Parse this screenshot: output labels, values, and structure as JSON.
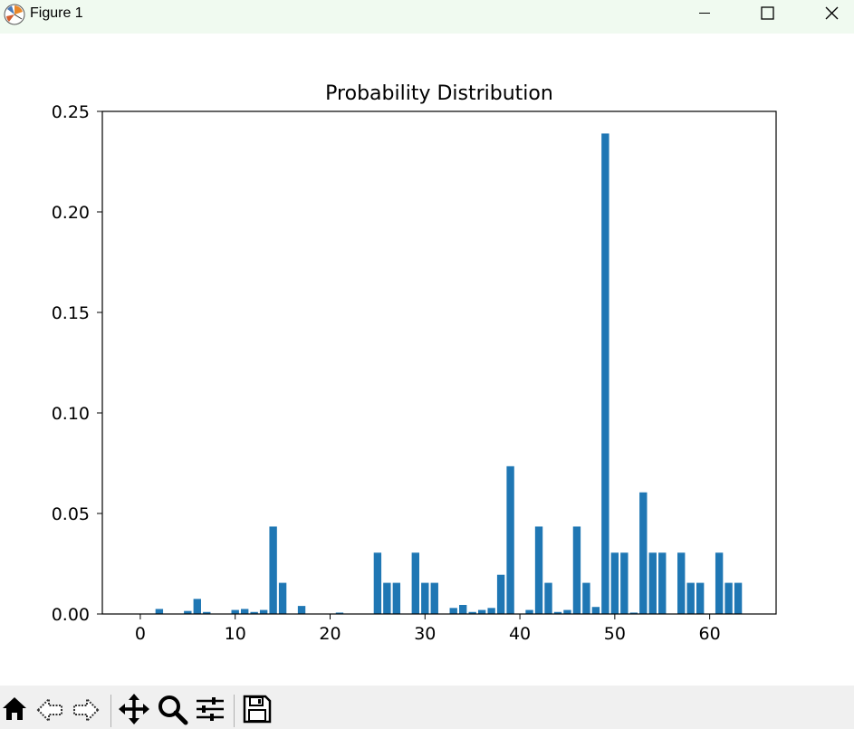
{
  "window": {
    "title": "Figure 1"
  },
  "toolbar": {
    "buttons": [
      "home-icon",
      "back-icon",
      "forward-icon",
      "pan-icon",
      "zoom-icon",
      "configure-icon",
      "save-icon"
    ]
  },
  "colors": {
    "bar": "#1f77b4",
    "titlebar": "#f0faf0",
    "toolbar": "#f0f0f0"
  },
  "chart_data": {
    "type": "bar",
    "title": "Probability Distribution",
    "xlabel": "",
    "ylabel": "",
    "xlim": [
      -4,
      67
    ],
    "ylim": [
      0,
      0.25
    ],
    "grid": false,
    "x_ticks": [
      0,
      10,
      20,
      30,
      40,
      50,
      60
    ],
    "y_ticks": [
      "0.00",
      "0.05",
      "0.10",
      "0.15",
      "0.20",
      "0.25"
    ],
    "x": [
      2,
      5,
      6,
      7,
      10,
      11,
      12,
      13,
      14,
      15,
      17,
      21,
      25,
      26,
      27,
      29,
      30,
      31,
      33,
      34,
      35,
      36,
      37,
      38,
      39,
      41,
      42,
      43,
      44,
      45,
      46,
      47,
      48,
      49,
      50,
      51,
      52,
      53,
      54,
      55,
      57,
      58,
      59,
      61,
      62,
      63
    ],
    "values": [
      0.0025,
      0.0015,
      0.0075,
      0.001,
      0.002,
      0.0025,
      0.001,
      0.002,
      0.0435,
      0.0155,
      0.004,
      0.0007,
      0.0305,
      0.0155,
      0.0155,
      0.0305,
      0.0155,
      0.0155,
      0.003,
      0.0045,
      0.001,
      0.002,
      0.003,
      0.0195,
      0.0735,
      0.002,
      0.0435,
      0.0155,
      0.001,
      0.002,
      0.0435,
      0.0155,
      0.0035,
      0.239,
      0.0305,
      0.0305,
      0.0007,
      0.0605,
      0.0305,
      0.0305,
      0.0305,
      0.0155,
      0.0155,
      0.0305,
      0.0155,
      0.0155
    ]
  }
}
